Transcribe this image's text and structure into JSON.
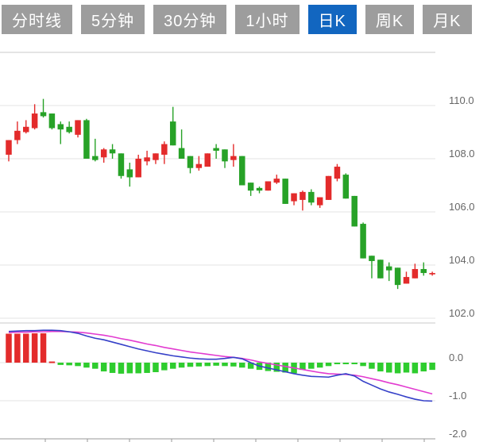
{
  "toolbar": {
    "tabs": [
      {
        "name": "tab-timeline",
        "label": "分时线",
        "active": false
      },
      {
        "name": "tab-5min",
        "label": "5分钟",
        "active": false
      },
      {
        "name": "tab-30min",
        "label": "30分钟",
        "active": false
      },
      {
        "name": "tab-1hour",
        "label": "1小时",
        "active": false
      },
      {
        "name": "tab-daily-k",
        "label": "日K",
        "active": true
      },
      {
        "name": "tab-weekly-k",
        "label": "周K",
        "active": false
      },
      {
        "name": "tab-monthly-k",
        "label": "月K",
        "active": false
      }
    ],
    "active_bg": "#1266c0",
    "inactive_bg": "#9d9d9d",
    "text_color": "#ffffff"
  },
  "chart_data": {
    "type": "candlestick-with-macd",
    "title": "",
    "legend_position": "none",
    "grid": true,
    "price_axis": {
      "tick_labels": [
        "110.0",
        "108.0",
        "106.0",
        "104.0",
        "102.0"
      ],
      "tick_values": [
        110.0,
        108.0,
        106.0,
        104.0,
        102.0
      ],
      "ylim": [
        102.0,
        112.0
      ],
      "side": "right"
    },
    "macd_axis": {
      "tick_labels": [
        "0.0",
        "-1.0",
        "-2.0"
      ],
      "tick_values": [
        0.0,
        -1.0,
        -2.0
      ],
      "ylim": [
        -2.0,
        1.04
      ],
      "side": "right"
    },
    "colors": {
      "up": "#e32b2b",
      "down": "#27a227",
      "hist_up": "#e32b2b",
      "hist_down": "#2ecc2e",
      "dif_line": "#3540c8",
      "dea_line": "#e23bd0",
      "grid": "#e3e3e3",
      "panel_border": "#c9c9c9",
      "axis_tick": "#999999",
      "axis_text": "#666666"
    },
    "candles_ohlc": [
      [
        108.15,
        108.7,
        107.9,
        108.7
      ],
      [
        108.7,
        109.4,
        108.55,
        109.05
      ],
      [
        109.0,
        109.45,
        108.95,
        109.2
      ],
      [
        109.15,
        110.05,
        109.1,
        109.7
      ],
      [
        109.75,
        110.25,
        109.55,
        109.6
      ],
      [
        109.7,
        109.7,
        109.1,
        109.15
      ],
      [
        109.3,
        109.4,
        108.55,
        109.1
      ],
      [
        109.2,
        109.4,
        108.95,
        109.0
      ],
      [
        108.9,
        109.45,
        108.8,
        109.45
      ],
      [
        109.45,
        109.5,
        108.0,
        108.0
      ],
      [
        108.1,
        108.75,
        107.9,
        107.95
      ],
      [
        108.05,
        108.4,
        107.85,
        108.35
      ],
      [
        108.35,
        108.55,
        108.0,
        108.2
      ],
      [
        108.2,
        108.2,
        107.25,
        107.35
      ],
      [
        107.6,
        107.85,
        106.95,
        107.3
      ],
      [
        107.3,
        108.15,
        107.3,
        108.0
      ],
      [
        107.9,
        108.3,
        107.75,
        108.05
      ],
      [
        107.95,
        108.2,
        107.8,
        108.2
      ],
      [
        108.15,
        108.65,
        107.8,
        108.55
      ],
      [
        109.4,
        109.95,
        108.5,
        108.5
      ],
      [
        108.4,
        109.1,
        108.0,
        108.0
      ],
      [
        108.1,
        108.1,
        107.45,
        107.65
      ],
      [
        107.65,
        108.1,
        107.55,
        107.8
      ],
      [
        107.7,
        108.2,
        107.7,
        108.2
      ],
      [
        108.4,
        108.55,
        108.0,
        108.3
      ],
      [
        108.35,
        108.35,
        107.65,
        107.9
      ],
      [
        107.95,
        108.55,
        107.7,
        108.1
      ],
      [
        108.1,
        108.1,
        107.0,
        107.0
      ],
      [
        107.1,
        107.1,
        106.6,
        106.8
      ],
      [
        106.9,
        106.95,
        106.7,
        106.8
      ],
      [
        106.8,
        107.15,
        106.8,
        107.15
      ],
      [
        107.1,
        107.4,
        107.05,
        107.25
      ],
      [
        107.25,
        107.25,
        106.3,
        106.3
      ],
      [
        106.4,
        106.7,
        106.25,
        106.7
      ],
      [
        106.45,
        106.8,
        106.05,
        106.75
      ],
      [
        106.75,
        106.85,
        106.25,
        106.35
      ],
      [
        106.25,
        106.55,
        106.15,
        106.55
      ],
      [
        106.45,
        107.35,
        106.45,
        107.35
      ],
      [
        107.25,
        107.8,
        107.15,
        107.7
      ],
      [
        107.4,
        107.45,
        106.5,
        106.5
      ],
      [
        106.6,
        106.6,
        105.45,
        105.45
      ],
      [
        105.55,
        105.6,
        104.25,
        104.25
      ],
      [
        104.35,
        104.35,
        103.5,
        104.15
      ],
      [
        104.2,
        104.2,
        103.5,
        103.5
      ],
      [
        103.95,
        104.1,
        103.4,
        103.8
      ],
      [
        103.9,
        103.9,
        103.1,
        103.25
      ],
      [
        103.3,
        103.75,
        103.3,
        103.55
      ],
      [
        103.5,
        104.05,
        103.5,
        103.85
      ],
      [
        103.85,
        104.1,
        103.6,
        103.7
      ],
      [
        103.65,
        103.75,
        103.6,
        103.7
      ]
    ],
    "macd": {
      "hist": [
        0.76,
        0.76,
        0.76,
        0.77,
        0.77,
        0.03,
        -0.06,
        -0.07,
        -0.09,
        -0.13,
        -0.16,
        -0.23,
        -0.27,
        -0.29,
        -0.28,
        -0.28,
        -0.27,
        -0.25,
        -0.2,
        -0.16,
        -0.13,
        -0.11,
        -0.1,
        -0.09,
        -0.08,
        -0.09,
        -0.1,
        -0.13,
        -0.16,
        -0.19,
        -0.22,
        -0.24,
        -0.26,
        -0.28,
        -0.19,
        -0.16,
        -0.13,
        -0.09,
        -0.04,
        -0.02,
        -0.01,
        -0.09,
        -0.16,
        -0.23,
        -0.26,
        -0.28,
        -0.26,
        -0.28,
        -0.23,
        -0.19
      ],
      "dif": [
        0.82,
        0.83,
        0.84,
        0.84,
        0.85,
        0.85,
        0.84,
        0.81,
        0.77,
        0.7,
        0.64,
        0.6,
        0.54,
        0.48,
        0.42,
        0.36,
        0.31,
        0.26,
        0.22,
        0.18,
        0.15,
        0.12,
        0.1,
        0.09,
        0.09,
        0.11,
        0.14,
        0.1,
        0.0,
        -0.09,
        -0.14,
        -0.19,
        -0.24,
        -0.29,
        -0.33,
        -0.36,
        -0.37,
        -0.38,
        -0.33,
        -0.29,
        -0.35,
        -0.49,
        -0.59,
        -0.69,
        -0.77,
        -0.83,
        -0.9,
        -0.96,
        -1.0,
        -1.01
      ],
      "dea": [
        0.79,
        0.8,
        0.8,
        0.81,
        0.81,
        0.82,
        0.82,
        0.81,
        0.8,
        0.78,
        0.75,
        0.72,
        0.68,
        0.63,
        0.59,
        0.54,
        0.49,
        0.45,
        0.4,
        0.36,
        0.32,
        0.28,
        0.25,
        0.22,
        0.19,
        0.16,
        0.14,
        0.11,
        0.07,
        0.02,
        -0.02,
        -0.06,
        -0.1,
        -0.14,
        -0.18,
        -0.22,
        -0.26,
        -0.29,
        -0.3,
        -0.31,
        -0.33,
        -0.37,
        -0.42,
        -0.47,
        -0.53,
        -0.58,
        -0.64,
        -0.7,
        -0.76,
        -0.82
      ]
    }
  }
}
